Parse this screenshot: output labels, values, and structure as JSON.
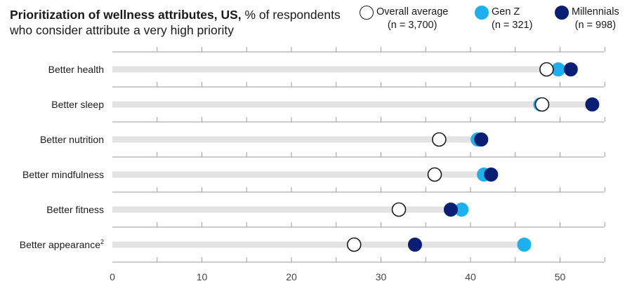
{
  "header": {
    "title_bold": "Prioritization of wellness attributes, US,",
    "title_rest": " % of respondents who consider attribute a very high priority"
  },
  "legend": [
    {
      "name": "Overall average",
      "n": "(n = 3,700)",
      "color": "#ffffff",
      "stroke": "#1a1a1a"
    },
    {
      "name": "Gen Z",
      "n": "(n = 321)",
      "color": "#1cb0ef",
      "stroke": "#1cb0ef"
    },
    {
      "name": "Millennials",
      "n": "(n = 998)",
      "color": "#0a1f73",
      "stroke": "#0a1f73"
    }
  ],
  "chart_data": {
    "type": "scatter",
    "title": "Prioritization of wellness attributes, US, % of respondents who consider attribute a very high priority",
    "categories": [
      "Better health",
      "Better sleep",
      "Better nutrition",
      "Better mindfulness",
      "Better fitness",
      "Better appearance"
    ],
    "category_superscripts": [
      "",
      "",
      "",
      "",
      "",
      "2"
    ],
    "series": [
      {
        "name": "Overall average",
        "values": [
          48.5,
          48,
          36.5,
          36,
          32,
          27
        ]
      },
      {
        "name": "Gen Z",
        "values": [
          49.8,
          47.8,
          40.8,
          41.5,
          39,
          46
        ]
      },
      {
        "name": "Millennials",
        "values": [
          51.2,
          53.6,
          41.2,
          42.3,
          37.8,
          33.8
        ]
      }
    ],
    "xlim": [
      0,
      55
    ],
    "xticks": [
      0,
      10,
      20,
      30,
      40,
      50
    ],
    "grid": true
  }
}
